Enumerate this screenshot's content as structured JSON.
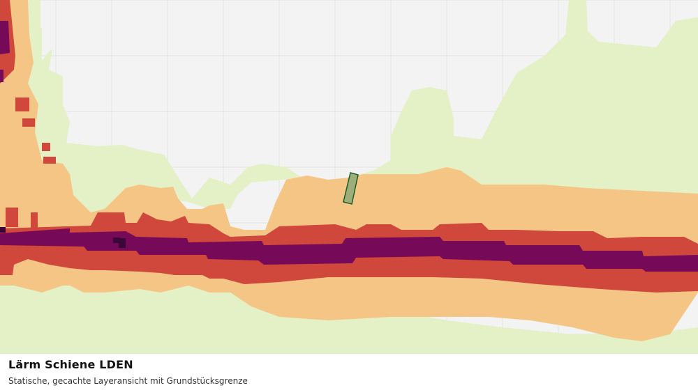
{
  "map": {
    "layer_name": "Lärm Schiene LDEN",
    "description": "Statische, gecachte Layeransicht mit Grundstücksgrenze",
    "colors": {
      "background": "#f2f3f2",
      "grid": "#e2e4e2",
      "noise_lowest": "#e4f1c6",
      "noise_low": "#f4c585",
      "noise_mid": "#d0473c",
      "noise_high": "#760a59",
      "noise_highest": "#3b0638",
      "parcel_fill": "#9caf7a",
      "parcel_stroke": "#1e5a26"
    },
    "style": "static-cached-layer"
  }
}
